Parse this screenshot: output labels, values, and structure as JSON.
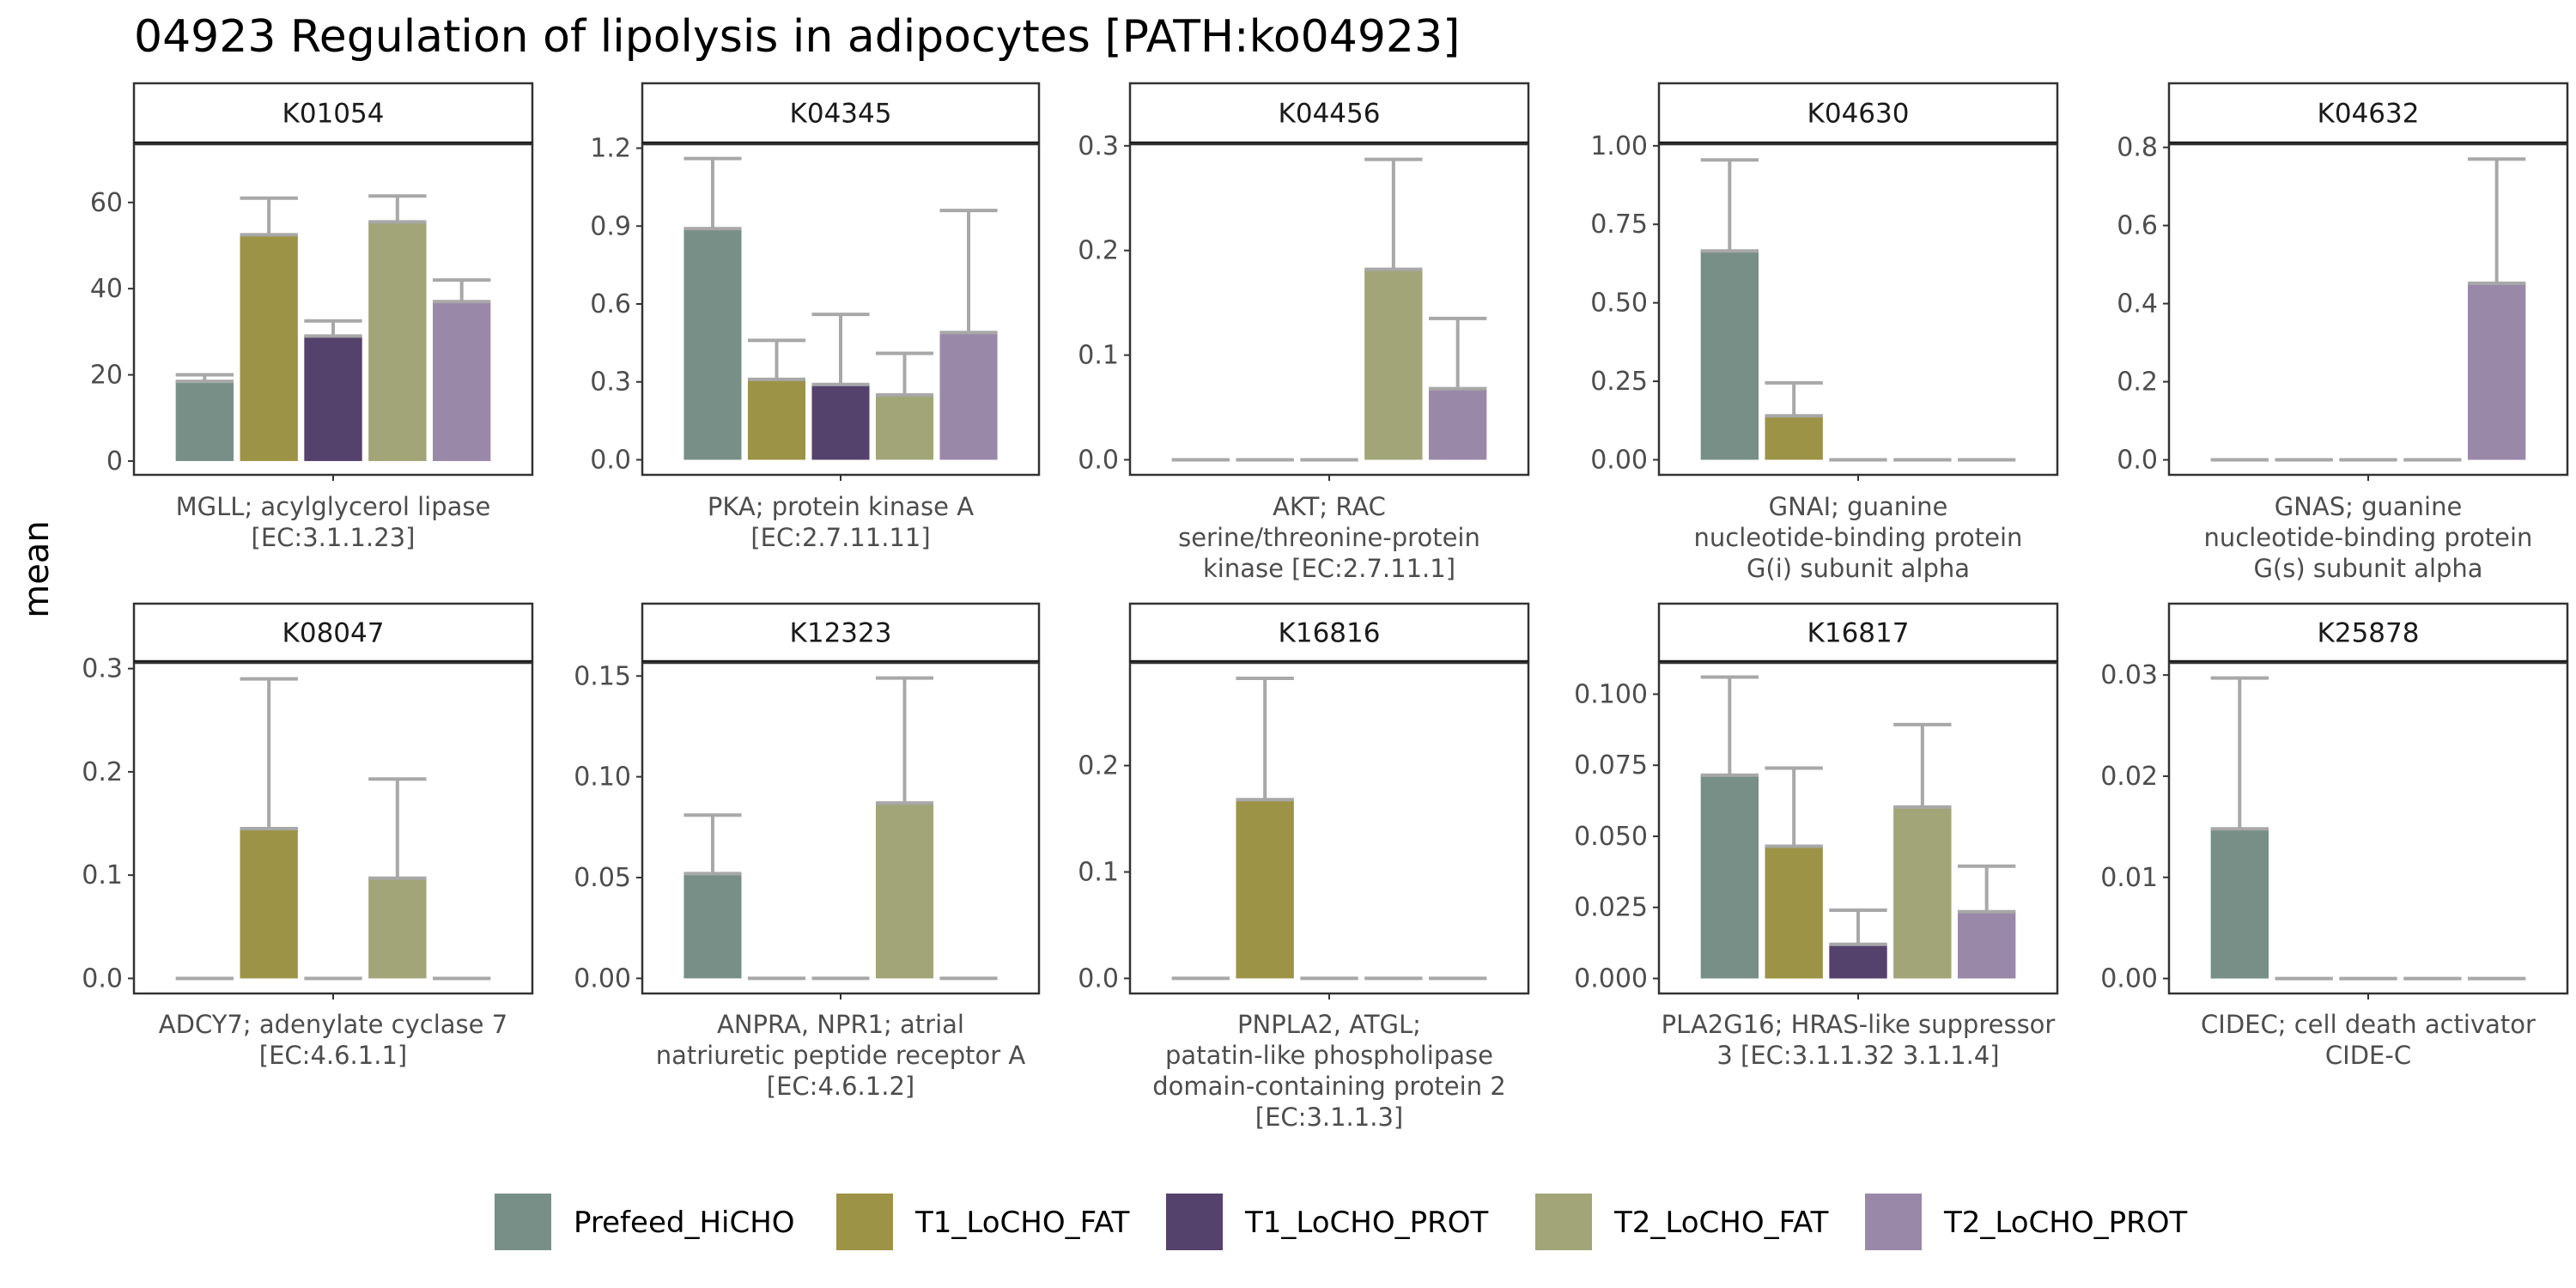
{
  "title": "04923 Regulation of lipolysis in adipocytes [PATH:ko04923]",
  "y_axis_label": "mean",
  "colors": {
    "Prefeed_HiCHO": "#788f87",
    "T1_LoCHO_FAT": "#9c9346",
    "T1_LoCHO_PROT": "#54426d",
    "T2_LoCHO_FAT": "#a1a577",
    "T2_LoCHO_PROT": "#9a88a9",
    "errorbar": "#a8a8a8"
  },
  "legend": [
    "Prefeed_HiCHO",
    "T1_LoCHO_FAT",
    "T1_LoCHO_PROT",
    "T2_LoCHO_FAT",
    "T2_LoCHO_PROT"
  ],
  "chart_data": [
    {
      "type": "bar",
      "facet": "K01054",
      "xlabel_lines": [
        "MGLL; acylglycerol lipase",
        "[EC:3.1.1.23]"
      ],
      "categories": [
        "Prefeed_HiCHO",
        "T1_LoCHO_FAT",
        "T1_LoCHO_PROT",
        "T2_LoCHO_FAT",
        "T2_LoCHO_PROT"
      ],
      "values": [
        18.5,
        52.5,
        29.0,
        55.5,
        37.0
      ],
      "error_upper": [
        20.0,
        61.0,
        32.5,
        61.5,
        42.0
      ],
      "ylim": [
        -3.2,
        73.5
      ],
      "yticks": [
        0,
        20,
        40,
        60
      ],
      "ytick_labels": [
        "0",
        "20",
        "40",
        "60"
      ]
    },
    {
      "type": "bar",
      "facet": "K04345",
      "xlabel_lines": [
        "PKA; protein kinase A",
        "[EC:2.7.11.11]"
      ],
      "categories": [
        "Prefeed_HiCHO",
        "T1_LoCHO_FAT",
        "T1_LoCHO_PROT",
        "T2_LoCHO_FAT",
        "T2_LoCHO_PROT"
      ],
      "values": [
        0.89,
        0.31,
        0.29,
        0.25,
        0.49
      ],
      "error_upper": [
        1.16,
        0.46,
        0.56,
        0.41,
        0.96
      ],
      "ylim": [
        -0.058,
        1.215
      ],
      "yticks": [
        0,
        0.3,
        0.6,
        0.9,
        1.2
      ],
      "ytick_labels": [
        "0.0",
        "0.3",
        "0.6",
        "0.9",
        "1.2"
      ]
    },
    {
      "type": "bar",
      "facet": "K04456",
      "xlabel_lines": [
        "AKT; RAC",
        "serine/threonine-protein",
        "kinase [EC:2.7.11.1]"
      ],
      "categories": [
        "Prefeed_HiCHO",
        "T1_LoCHO_FAT",
        "T1_LoCHO_PROT",
        "T2_LoCHO_FAT",
        "T2_LoCHO_PROT"
      ],
      "values": [
        0,
        0,
        0,
        0.182,
        0.068
      ],
      "error_upper": [
        0,
        0,
        0,
        0.287,
        0.135
      ],
      "ylim": [
        -0.0144,
        0.3015
      ],
      "yticks": [
        0,
        0.1,
        0.2,
        0.3
      ],
      "ytick_labels": [
        "0.0",
        "0.1",
        "0.2",
        "0.3"
      ]
    },
    {
      "type": "bar",
      "facet": "K04630",
      "xlabel_lines": [
        "GNAI; guanine",
        "nucleotide-binding protein",
        "G(i) subunit alpha"
      ],
      "categories": [
        "Prefeed_HiCHO",
        "T1_LoCHO_FAT",
        "T1_LoCHO_PROT",
        "T2_LoCHO_FAT",
        "T2_LoCHO_PROT"
      ],
      "values": [
        0.665,
        0.14,
        0,
        0,
        0
      ],
      "error_upper": [
        0.955,
        0.245,
        0,
        0,
        0
      ],
      "ylim": [
        -0.048,
        1.005
      ],
      "yticks": [
        0,
        0.25,
        0.5,
        0.75,
        1.0
      ],
      "ytick_labels": [
        "0.00",
        "0.25",
        "0.50",
        "0.75",
        "1.00"
      ]
    },
    {
      "type": "bar",
      "facet": "K04632",
      "xlabel_lines": [
        "GNAS; guanine",
        "nucleotide-binding protein",
        "G(s) subunit alpha"
      ],
      "categories": [
        "Prefeed_HiCHO",
        "T1_LoCHO_FAT",
        "T1_LoCHO_PROT",
        "T2_LoCHO_FAT",
        "T2_LoCHO_PROT"
      ],
      "values": [
        0,
        0,
        0,
        0,
        0.452
      ],
      "error_upper": [
        0,
        0,
        0,
        0,
        0.77
      ],
      "ylim": [
        -0.0384,
        0.808
      ],
      "yticks": [
        0,
        0.2,
        0.4,
        0.6,
        0.8
      ],
      "ytick_labels": [
        "0.0",
        "0.2",
        "0.4",
        "0.6",
        "0.8"
      ]
    },
    {
      "type": "bar",
      "facet": "K08047",
      "xlabel_lines": [
        "ADCY7; adenylate cyclase 7",
        "[EC:4.6.1.1]"
      ],
      "categories": [
        "Prefeed_HiCHO",
        "T1_LoCHO_FAT",
        "T1_LoCHO_PROT",
        "T2_LoCHO_FAT",
        "T2_LoCHO_PROT"
      ],
      "values": [
        0,
        0.145,
        0,
        0.097,
        0
      ],
      "error_upper": [
        0,
        0.29,
        0,
        0.193,
        0
      ],
      "ylim": [
        -0.0146,
        0.3055
      ],
      "yticks": [
        0,
        0.1,
        0.2,
        0.3
      ],
      "ytick_labels": [
        "0.0",
        "0.1",
        "0.2",
        "0.3"
      ]
    },
    {
      "type": "bar",
      "facet": "K12323",
      "xlabel_lines": [
        "ANPRA, NPR1; atrial",
        "natriuretic peptide receptor A",
        "[EC:4.6.1.2]"
      ],
      "categories": [
        "Prefeed_HiCHO",
        "T1_LoCHO_FAT",
        "T1_LoCHO_PROT",
        "T2_LoCHO_FAT",
        "T2_LoCHO_PROT"
      ],
      "values": [
        0.052,
        0,
        0,
        0.087,
        0
      ],
      "error_upper": [
        0.081,
        0,
        0,
        0.149,
        0
      ],
      "ylim": [
        -0.0075,
        0.1565
      ],
      "yticks": [
        0,
        0.05,
        0.1,
        0.15
      ],
      "ytick_labels": [
        "0.00",
        "0.05",
        "0.10",
        "0.15"
      ]
    },
    {
      "type": "bar",
      "facet": "K16816",
      "xlabel_lines": [
        "PNPLA2, ATGL;",
        "patatin-like phospholipase",
        "domain-containing protein 2",
        "[EC:3.1.1.3]"
      ],
      "categories": [
        "Prefeed_HiCHO",
        "T1_LoCHO_FAT",
        "T1_LoCHO_PROT",
        "T2_LoCHO_FAT",
        "T2_LoCHO_PROT"
      ],
      "values": [
        0,
        0.168,
        0,
        0,
        0
      ],
      "error_upper": [
        0,
        0.282,
        0,
        0,
        0
      ],
      "ylim": [
        -0.0142,
        0.2965
      ],
      "yticks": [
        0,
        0.1,
        0.2
      ],
      "ytick_labels": [
        "0.0",
        "0.1",
        "0.2"
      ]
    },
    {
      "type": "bar",
      "facet": "K16817",
      "xlabel_lines": [
        "PLA2G16; HRAS-like suppressor",
        "3 [EC:3.1.1.32 3.1.1.4]"
      ],
      "categories": [
        "Prefeed_HiCHO",
        "T1_LoCHO_FAT",
        "T1_LoCHO_PROT",
        "T2_LoCHO_FAT",
        "T2_LoCHO_PROT"
      ],
      "values": [
        0.0715,
        0.0465,
        0.012,
        0.0603,
        0.0235
      ],
      "error_upper": [
        0.106,
        0.074,
        0.024,
        0.0893,
        0.0395
      ],
      "ylim": [
        -0.00528,
        0.111
      ],
      "yticks": [
        0,
        0.025,
        0.05,
        0.075,
        0.1
      ],
      "ytick_labels": [
        "0.000",
        "0.025",
        "0.050",
        "0.075",
        "0.100"
      ]
    },
    {
      "type": "bar",
      "facet": "K25878",
      "xlabel_lines": [
        "CIDEC; cell death activator",
        "CIDE-C"
      ],
      "categories": [
        "Prefeed_HiCHO",
        "T1_LoCHO_FAT",
        "T1_LoCHO_PROT",
        "T2_LoCHO_FAT",
        "T2_LoCHO_PROT"
      ],
      "values": [
        0.0148,
        0,
        0,
        0,
        0
      ],
      "error_upper": [
        0.0297,
        0,
        0,
        0,
        0
      ],
      "ylim": [
        -0.00148,
        0.0312
      ],
      "yticks": [
        0,
        0.01,
        0.02,
        0.03
      ],
      "ytick_labels": [
        "0.00",
        "0.01",
        "0.02",
        "0.03"
      ]
    }
  ]
}
